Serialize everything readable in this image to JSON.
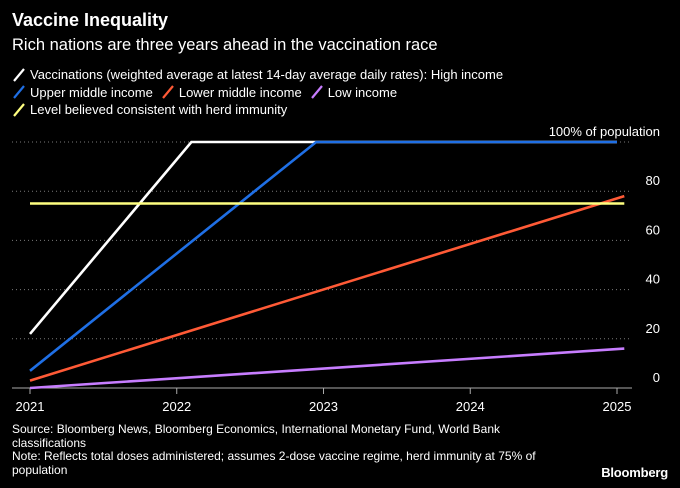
{
  "chart_data": {
    "type": "line",
    "title": "Vaccine Inequality",
    "subtitle": "Rich nations are three years ahead in the vaccination race",
    "xlabel": "",
    "ylabel": "",
    "xlim": [
      2021.0,
      2025.2
    ],
    "ylim": [
      0,
      100
    ],
    "x_ticks": [
      2021,
      2022,
      2023,
      2024,
      2025
    ],
    "y_ticks": [
      0,
      20,
      40,
      60,
      80,
      100
    ],
    "y_tick_labels": [
      "0",
      "20",
      "40",
      "60",
      "80",
      "100% of population"
    ],
    "series": [
      {
        "name": "Vaccinations (weighted average at latest 14-day average daily rates): High income",
        "color": "#ffffff",
        "x": [
          2021.0,
          2022.1,
          2025.0
        ],
        "y": [
          22,
          100,
          100
        ]
      },
      {
        "name": "Upper middle income",
        "color": "#1f6fe5",
        "x": [
          2021.0,
          2022.95,
          2025.0
        ],
        "y": [
          7,
          100,
          100
        ]
      },
      {
        "name": "Lower middle income",
        "color": "#ff5a36",
        "x": [
          2021.0,
          2025.05
        ],
        "y": [
          3,
          78
        ]
      },
      {
        "name": "Low income",
        "color": "#c77dff",
        "x": [
          2021.0,
          2025.05
        ],
        "y": [
          0,
          16
        ]
      },
      {
        "name": "Level believed consistent with herd immunity",
        "color": "#ffff80",
        "x": [
          2021.0,
          2025.05
        ],
        "y": [
          75,
          75
        ]
      }
    ]
  },
  "legend": {
    "row1": "Vaccinations (weighted average at latest 14-day average daily rates): High income",
    "row2a": "Upper middle income",
    "row2b": "Lower middle income",
    "row2c": "Low income",
    "row3": "Level believed consistent with herd immunity"
  },
  "footer": {
    "source": "Source: Bloomberg News, Bloomberg Economics, International Monetary Fund, World Bank classifications",
    "note": "Note: Reflects total doses administered; assumes 2-dose vaccine regime, herd immunity at 75% of population"
  },
  "brand": "Bloomberg"
}
